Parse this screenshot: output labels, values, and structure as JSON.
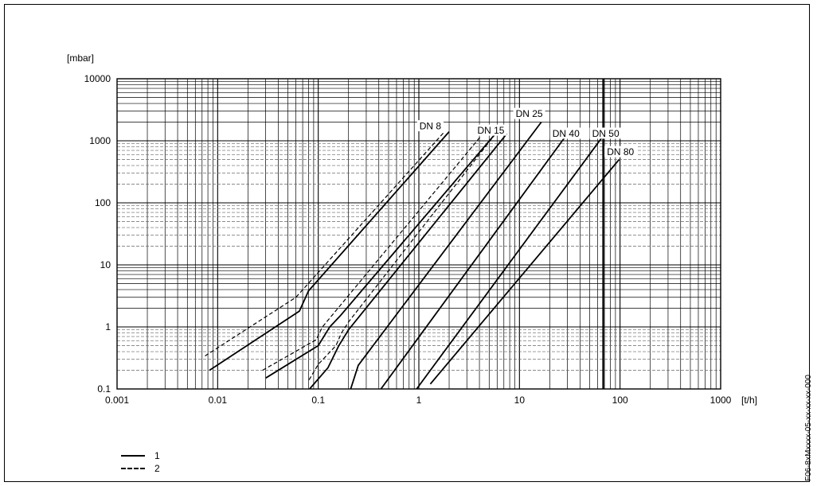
{
  "chart_data": {
    "type": "line",
    "title": "",
    "xlabel": "[t/h]",
    "ylabel": "[mbar]",
    "xscale": "log",
    "yscale": "log",
    "xlim": [
      0.001,
      1000
    ],
    "ylim": [
      0.1,
      10000
    ],
    "x_ticks": [
      "0.001",
      "0.01",
      "0.1",
      "1",
      "10",
      "100",
      "1000"
    ],
    "y_ticks": [
      "0.1",
      "1",
      "10",
      "100",
      "1000",
      "10000"
    ],
    "grid": true,
    "legend": {
      "placement": "bottom-left",
      "entries": [
        {
          "label": "1",
          "style": "solid"
        },
        {
          "label": "2",
          "style": "dashed"
        }
      ]
    },
    "series": [
      {
        "name": "DN 8",
        "style": "solid",
        "points": [
          [
            0.0083,
            0.2
          ],
          [
            0.065,
            1.8
          ],
          [
            0.08,
            3.8
          ],
          [
            2.0,
            1400
          ]
        ]
      },
      {
        "name": "DN 8",
        "style": "dashed",
        "points": [
          [
            0.0075,
            0.34
          ],
          [
            0.06,
            3.0
          ],
          [
            1.8,
            1400
          ]
        ]
      },
      {
        "name": "DN 15",
        "style": "solid",
        "points": [
          [
            0.03,
            0.15
          ],
          [
            0.1,
            0.5
          ],
          [
            0.13,
            1.0
          ],
          [
            0.165,
            1.5
          ],
          [
            6.0,
            1400
          ]
        ]
      },
      {
        "name": "DN 15",
        "style": "dashed",
        "points": [
          [
            0.028,
            0.2
          ],
          [
            0.095,
            0.62
          ],
          [
            0.11,
            1.0
          ],
          [
            4.5,
            1400
          ]
        ]
      },
      {
        "name": "DN 15",
        "style": "dashed",
        "points": [
          [
            0.081,
            0.14
          ],
          [
            0.1,
            0.25
          ],
          [
            0.15,
            0.5
          ],
          [
            0.17,
            0.8
          ],
          [
            0.2,
            1.2
          ],
          [
            6.0,
            1400
          ]
        ]
      },
      {
        "name": "DN 15",
        "style": "solid",
        "points": [
          [
            0.082,
            0.1
          ],
          [
            0.125,
            0.22
          ],
          [
            0.16,
            0.5
          ],
          [
            0.2,
            0.9
          ],
          [
            7.5,
            1300
          ]
        ]
      },
      {
        "name": "DN 25",
        "style": "solid",
        "points": [
          [
            0.21,
            0.1
          ],
          [
            0.25,
            0.24
          ],
          [
            16.5,
            2000
          ]
        ]
      },
      {
        "name": "DN 40",
        "style": "solid",
        "points": [
          [
            0.42,
            0.1
          ],
          [
            30,
            1300
          ]
        ]
      },
      {
        "name": "DN 50",
        "style": "solid",
        "points": [
          [
            0.95,
            0.1
          ],
          [
            68,
            1200
          ]
        ]
      },
      {
        "name": "DN 80",
        "style": "solid",
        "points": [
          [
            1.3,
            0.12
          ],
          [
            98,
            500
          ]
        ]
      }
    ],
    "vertical_markers": [
      {
        "x": 68,
        "style": "solid"
      }
    ],
    "curve_labels": [
      {
        "text": "DN 8",
        "x": 1.3,
        "y": 1650,
        "anchor": "middle"
      },
      {
        "text": "DN 15",
        "x": 5.2,
        "y": 1400,
        "anchor": "middle"
      },
      {
        "text": "DN 25",
        "x": 12.5,
        "y": 2600,
        "anchor": "middle"
      },
      {
        "text": "DN 40",
        "x": 29,
        "y": 1250,
        "anchor": "middle"
      },
      {
        "text": "DN 50",
        "x": 72,
        "y": 1250,
        "anchor": "middle"
      },
      {
        "text": "DN 80",
        "x": 101,
        "y": 630,
        "anchor": "middle"
      }
    ]
  },
  "side_code": "F06-8xMxxxx-05-xx-xx-xx-000"
}
